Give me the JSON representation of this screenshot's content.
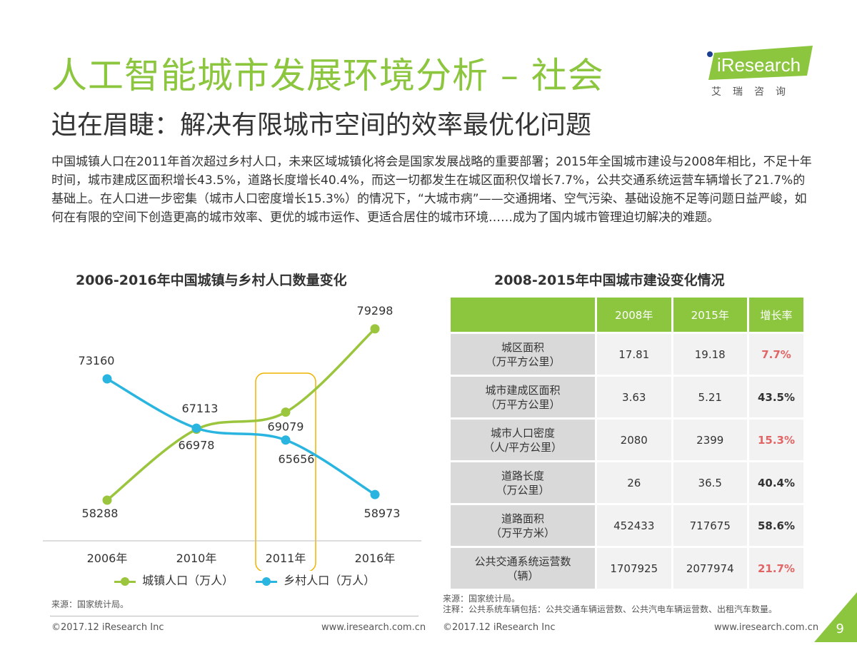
{
  "header": {
    "title": "人工智能城市发展环境分析 – 社会",
    "subtitle": "迫在眉睫：解决有限城市空间的效率最优化问题",
    "logo_text": "iResearch",
    "logo_cn": "艾瑞咨询"
  },
  "body_text": "中国城镇人口在2011年首次超过乡村人口，未来区域城镇化将会是国家发展战略的重要部署；2015年全国城市建设与2008年相比，不足十年时间，城市建成区面积增长43.5%，道路长度增长40.4%，而这一切都发生在城区面积仅增长7.7%，公共交通系统运营车辆增长了21.7%的基础上。在人口进一步密集（城市人口密度增长15.3%）的情况下，“大城市病”——交通拥堵、空气污染、基础设施不足等问题日益严峻，如何在有限的空间下创造更高的城市效率、更优的城市运作、更适合居住的城市环境……成为了国内城市管理迫切解决的难题。",
  "colors": {
    "accent": "#8cc63f",
    "urban": "#9bc53d",
    "rural": "#29b5e0",
    "highlight": "#f0b400",
    "rate_red": "#e26565"
  },
  "chart_data": [
    {
      "type": "line",
      "title": "2006-2016年中国城镇与乡村人口数量变化",
      "categories": [
        "2006年",
        "2010年",
        "2011年",
        "2016年"
      ],
      "series": [
        {
          "name": "城镇人口（万人）",
          "values": [
            58288,
            66978,
            69079,
            79298
          ]
        },
        {
          "name": "乡村人口（万人）",
          "values": [
            73160,
            67113,
            65656,
            58973
          ]
        }
      ],
      "highlight_category": "2011年",
      "legend": "bottom",
      "grid": false
    },
    {
      "type": "table",
      "title": "2008-2015年中国城市建设变化情况",
      "columns": [
        "",
        "2008年",
        "2015年",
        "增长率"
      ],
      "rows": [
        {
          "label": [
            "城区面积",
            "（万平方公里）"
          ],
          "y2008": "17.81",
          "y2015": "19.18",
          "rate": "7.7%",
          "rate_color": "red"
        },
        {
          "label": [
            "城市建成区面积",
            "（万平方公里）"
          ],
          "y2008": "3.63",
          "y2015": "5.21",
          "rate": "43.5%",
          "rate_color": "dark"
        },
        {
          "label": [
            "城市人口密度",
            "（人/平方公里）"
          ],
          "y2008": "2080",
          "y2015": "2399",
          "rate": "15.3%",
          "rate_color": "red"
        },
        {
          "label": [
            "道路长度",
            "（万公里）"
          ],
          "y2008": "26",
          "y2015": "36.5",
          "rate": "40.4%",
          "rate_color": "dark"
        },
        {
          "label": [
            "道路面积",
            "（万平方米）"
          ],
          "y2008": "452433",
          "y2015": "717675",
          "rate": "58.6%",
          "rate_color": "dark"
        },
        {
          "label": [
            "公共交通系统运营数",
            "（辆）"
          ],
          "y2008": "1707925",
          "y2015": "2077974",
          "rate": "21.7%",
          "rate_color": "red"
        }
      ]
    }
  ],
  "footer": {
    "source_left": "来源：国家统计局。",
    "source_right": "来源：国家统计局。",
    "note_right": "注释：公共系统车辆包括：公共交通车辆运营数、公共汽电车辆运营数、出租汽车数量。",
    "copyright": "©2017.12 iResearch Inc",
    "url": "www.iresearch.com.cn",
    "page_number": "9"
  }
}
